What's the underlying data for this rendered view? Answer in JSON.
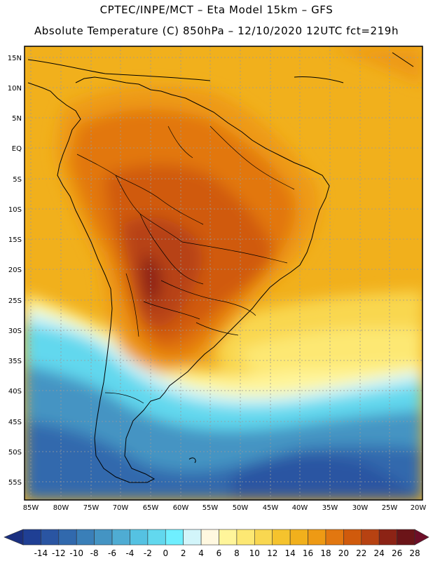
{
  "header": {
    "line1": "CPTEC/INPE/MCT –  Eta Model 15km – GFS",
    "line2": "Absolute Temperature (C) 850hPa – 12/10/2020 12UTC fct=219h"
  },
  "axes": {
    "lat_labels": [
      "15N",
      "10N",
      "5N",
      "EQ",
      "5S",
      "10S",
      "15S",
      "20S",
      "25S",
      "30S",
      "35S",
      "40S",
      "45S",
      "50S",
      "55S"
    ],
    "lon_labels": [
      "85W",
      "80W",
      "75W",
      "70W",
      "65W",
      "60W",
      "55W",
      "50W",
      "45W",
      "40W",
      "35W",
      "30W",
      "25W",
      "20W"
    ]
  },
  "colorbar": {
    "labels": [
      "-14",
      "-12",
      "-10",
      "-8",
      "-6",
      "-4",
      "-2",
      "0",
      "2",
      "4",
      "6",
      "8",
      "10",
      "12",
      "14",
      "16",
      "18",
      "20",
      "22",
      "24",
      "26",
      "28"
    ],
    "colors": [
      "#1f3f94",
      "#2a55a2",
      "#3169ad",
      "#3a7fb8",
      "#4494c3",
      "#4facd3",
      "#55c2e2",
      "#62d8ee",
      "#6fefff",
      "#d2f5fa",
      "#fff8e0",
      "#fff59a",
      "#fde873",
      "#f9d750",
      "#f5c32d",
      "#f1b01c",
      "#ee9a14",
      "#e27710",
      "#d05a0c",
      "#b74212",
      "#8c2315",
      "#6b1418"
    ],
    "under_color": "#1a2f80",
    "over_color": "#6d0e28"
  }
}
